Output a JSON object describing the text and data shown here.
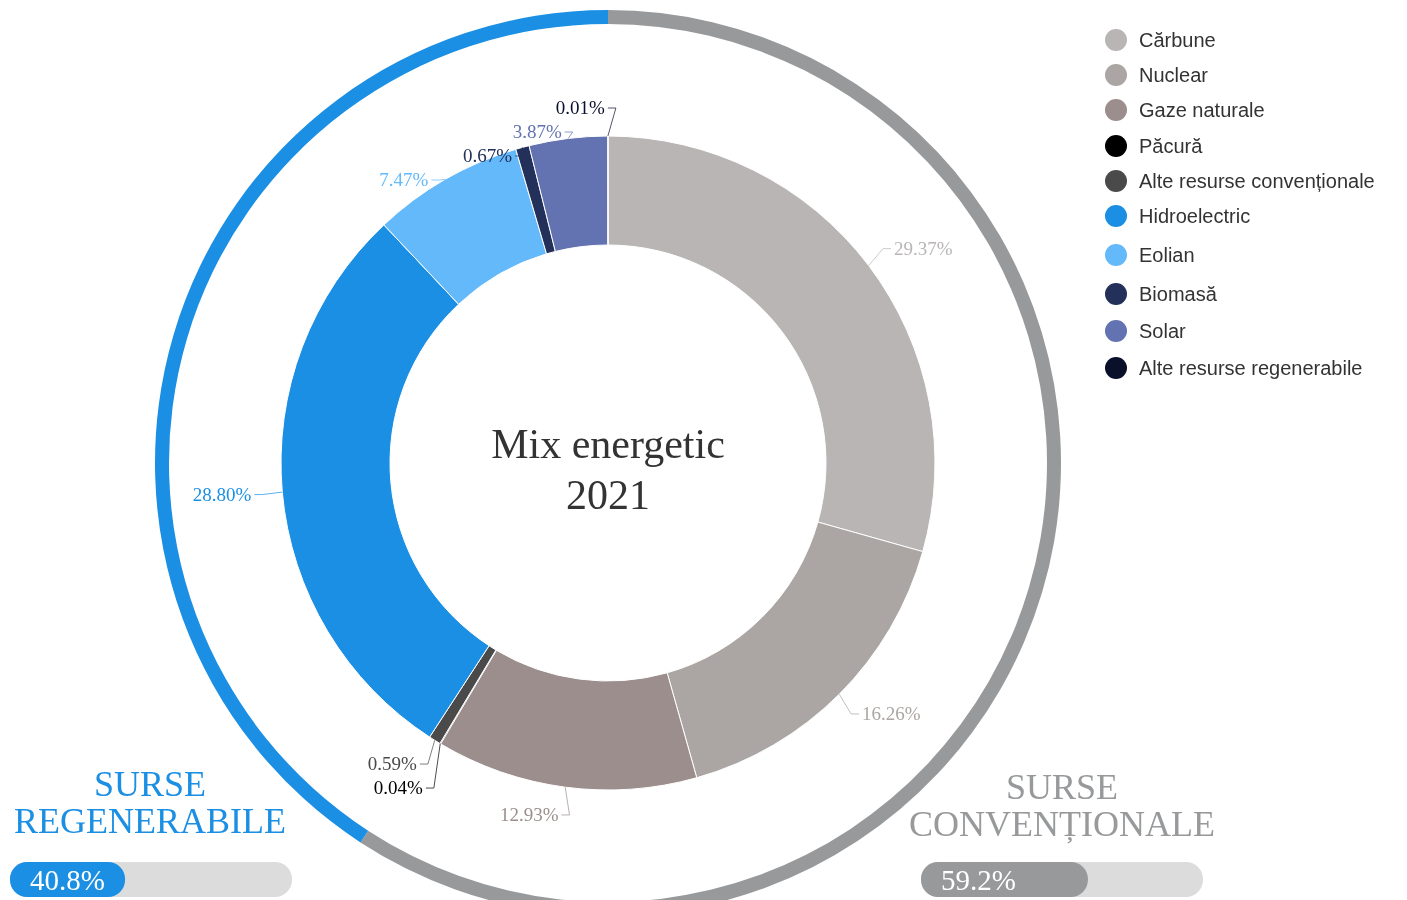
{
  "chart_data": [
    {
      "type": "donut",
      "title": "Mix energetic",
      "subtitle": "2021",
      "legend": "top right",
      "categories": [
        "Cărbune",
        "Nuclear",
        "Gaze naturale",
        "Păcură",
        "Alte resurse convenționale",
        "Hidroelectric",
        "Eolian",
        "Biomasă",
        "Solar",
        "Alte resurse regenerabile"
      ],
      "values": [
        29.37,
        16.26,
        12.93,
        0.04,
        0.59,
        28.8,
        7.47,
        0.67,
        3.87,
        0.01
      ],
      "value_labels": [
        "29.37%",
        "16.26%",
        "12.93%",
        "0.04%",
        "0.59%",
        "28.80%",
        "7.47%",
        "0.67%",
        "3.87%",
        "0.01%"
      ],
      "colors": [
        "#b9b5b5",
        "#aba6a3",
        "#9b8e8c",
        "#000000",
        "#4a4a4a",
        "#1a8fe3",
        "#63b9fa",
        "#22305a",
        "#6372b0",
        "#0a0f2a"
      ]
    },
    {
      "type": "donut",
      "categories": [
        "SURSE CONVENȚIONALE",
        "SURSE REGENERABILE"
      ],
      "values": [
        59.2,
        40.8
      ],
      "value_labels": [
        "59.2%",
        "40.8%"
      ],
      "colors": [
        "#97999b",
        "#1a8fe3"
      ]
    }
  ]
}
